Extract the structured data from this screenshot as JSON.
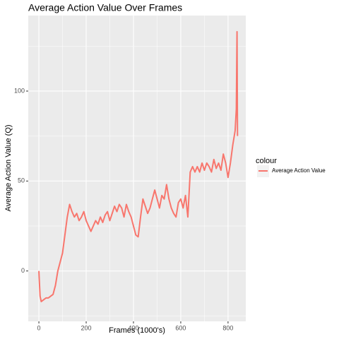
{
  "chart_data": {
    "type": "line",
    "title": "Average Action Value Over Frames",
    "x_label": "Frames (1000's)",
    "y_label": "Average Action Value (Q)",
    "legend_title": "colour",
    "legend": "right",
    "grid": true,
    "x": [
      0,
      5,
      10,
      20,
      30,
      40,
      50,
      60,
      70,
      80,
      90,
      100,
      110,
      120,
      130,
      140,
      150,
      160,
      170,
      180,
      190,
      200,
      210,
      220,
      230,
      240,
      250,
      260,
      270,
      280,
      290,
      300,
      310,
      320,
      330,
      340,
      350,
      360,
      370,
      380,
      390,
      400,
      410,
      420,
      430,
      440,
      450,
      460,
      470,
      480,
      490,
      500,
      510,
      520,
      530,
      540,
      550,
      560,
      570,
      580,
      590,
      600,
      610,
      620,
      630,
      640,
      650,
      660,
      670,
      680,
      690,
      700,
      710,
      720,
      730,
      740,
      750,
      760,
      770,
      780,
      790,
      800,
      810,
      820,
      830,
      835,
      838,
      840
    ],
    "series": [
      {
        "name": "Average Action Value",
        "color": "#F8766D",
        "values": [
          0,
          -14,
          -17,
          -16,
          -15,
          -15,
          -14,
          -13,
          -8,
          0,
          5,
          10,
          20,
          30,
          37,
          33,
          30,
          32,
          28,
          30,
          33,
          28,
          25,
          22,
          25,
          28,
          26,
          30,
          27,
          31,
          33,
          28,
          32,
          36,
          33,
          37,
          35,
          30,
          37,
          33,
          30,
          25,
          20,
          19,
          30,
          40,
          36,
          32,
          35,
          40,
          45,
          40,
          35,
          42,
          40,
          48,
          40,
          35,
          32,
          30,
          38,
          40,
          35,
          42,
          30,
          55,
          58,
          55,
          58,
          55,
          60,
          56,
          60,
          58,
          55,
          62,
          57,
          60,
          56,
          65,
          60,
          52,
          60,
          70,
          78,
          90,
          133,
          75
        ]
      }
    ],
    "xlim": [
      -45,
      875
    ],
    "ylim": [
      -28,
      142
    ],
    "xticks": [
      0,
      200,
      400,
      600,
      800
    ],
    "yticks": [
      0,
      50,
      100
    ],
    "xminor": [
      100,
      300,
      500,
      700
    ],
    "yminor": [
      -25,
      25,
      75,
      125
    ]
  }
}
